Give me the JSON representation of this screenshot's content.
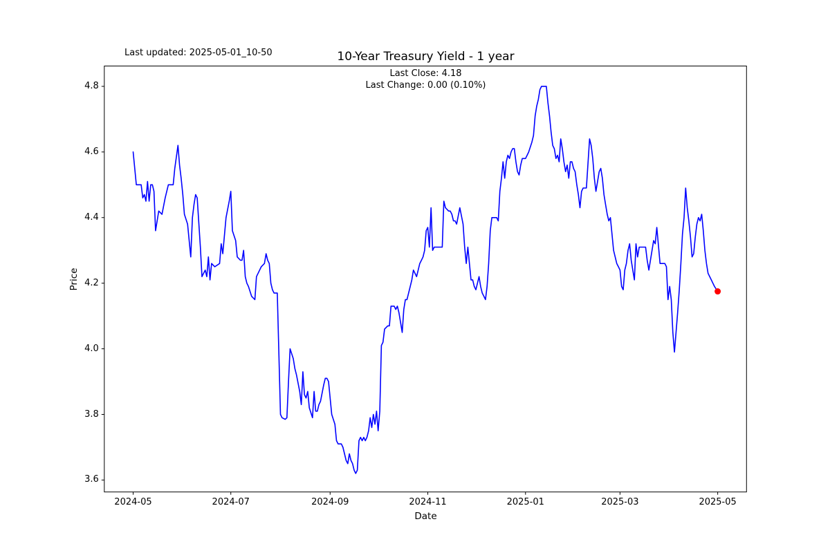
{
  "annotations": {
    "last_updated": "Last updated: 2025-05-01_10-50",
    "title": "10-Year Treasury Yield - 1 year",
    "last_close": "Last Close: 4.18",
    "last_change": "Last Change: 0.00 (0.10%)"
  },
  "chart_data": {
    "type": "line",
    "title": "10-Year Treasury Yield - 1 year",
    "xlabel": "Date",
    "ylabel": "Price",
    "grid": false,
    "legend": "none",
    "line_color": "#0000ff",
    "marker_color": "#ff0000",
    "axis_color": "#000000",
    "x_unit": "trading days offset from 2024-05-01",
    "x_domain_days": [
      -18,
      383
    ],
    "y_domain": [
      3.5636,
      4.862
    ],
    "x_ticks": [
      {
        "day": 0,
        "label": "2024-05"
      },
      {
        "day": 61,
        "label": "2024-07"
      },
      {
        "day": 123,
        "label": "2024-09"
      },
      {
        "day": 184,
        "label": "2024-11"
      },
      {
        "day": 245,
        "label": "2025-01"
      },
      {
        "day": 304,
        "label": "2025-03"
      },
      {
        "day": 365,
        "label": "2025-05"
      }
    ],
    "y_ticks": [
      {
        "v": 3.6,
        "label": "3.6"
      },
      {
        "v": 3.8,
        "label": "3.8"
      },
      {
        "v": 4.0,
        "label": "4.0"
      },
      {
        "v": 4.2,
        "label": "4.2"
      },
      {
        "v": 4.4,
        "label": "4.4"
      },
      {
        "v": 4.6,
        "label": "4.6"
      },
      {
        "v": 4.8,
        "label": "4.8"
      }
    ],
    "last_point": {
      "day": 365,
      "value": 4.175,
      "date": "2025-05-01"
    },
    "last_close_value": 4.18,
    "last_change_value": 0.0,
    "last_change_pct": "0.10%",
    "points": [
      [
        0,
        4.6
      ],
      [
        2,
        4.5
      ],
      [
        5,
        4.5
      ],
      [
        6,
        4.46
      ],
      [
        7,
        4.47
      ],
      [
        8,
        4.45
      ],
      [
        9,
        4.51
      ],
      [
        10,
        4.45
      ],
      [
        11,
        4.5
      ],
      [
        12,
        4.5
      ],
      [
        13,
        4.48
      ],
      [
        14,
        4.36
      ],
      [
        16,
        4.42
      ],
      [
        18,
        4.41
      ],
      [
        20,
        4.46
      ],
      [
        22,
        4.5
      ],
      [
        23,
        4.5
      ],
      [
        25,
        4.5
      ],
      [
        26,
        4.55
      ],
      [
        28,
        4.62
      ],
      [
        29,
        4.56
      ],
      [
        30,
        4.52
      ],
      [
        31,
        4.47
      ],
      [
        32,
        4.41
      ],
      [
        34,
        4.38
      ],
      [
        36,
        4.28
      ],
      [
        37,
        4.4
      ],
      [
        38,
        4.44
      ],
      [
        39,
        4.47
      ],
      [
        40,
        4.46
      ],
      [
        42,
        4.31
      ],
      [
        43,
        4.22
      ],
      [
        45,
        4.24
      ],
      [
        46,
        4.22
      ],
      [
        47,
        4.28
      ],
      [
        48,
        4.21
      ],
      [
        49,
        4.26
      ],
      [
        51,
        4.25
      ],
      [
        54,
        4.26
      ],
      [
        55,
        4.32
      ],
      [
        56,
        4.29
      ],
      [
        58,
        4.4
      ],
      [
        60,
        4.45
      ],
      [
        61,
        4.48
      ],
      [
        62,
        4.36
      ],
      [
        64,
        4.33
      ],
      [
        65,
        4.28
      ],
      [
        67,
        4.27
      ],
      [
        68,
        4.27
      ],
      [
        69,
        4.3
      ],
      [
        70,
        4.22
      ],
      [
        71,
        4.2
      ],
      [
        72,
        4.19
      ],
      [
        74,
        4.16
      ],
      [
        76,
        4.15
      ],
      [
        77,
        4.22
      ],
      [
        79,
        4.24
      ],
      [
        80,
        4.25
      ],
      [
        82,
        4.26
      ],
      [
        83,
        4.29
      ],
      [
        84,
        4.27
      ],
      [
        85,
        4.26
      ],
      [
        86,
        4.2
      ],
      [
        87,
        4.18
      ],
      [
        88,
        4.17
      ],
      [
        90,
        4.17
      ],
      [
        92,
        3.8
      ],
      [
        93,
        3.79
      ],
      [
        95,
        3.785
      ],
      [
        96,
        3.79
      ],
      [
        97,
        3.9
      ],
      [
        98,
        4.0
      ],
      [
        100,
        3.97
      ],
      [
        101,
        3.94
      ],
      [
        102,
        3.92
      ],
      [
        104,
        3.87
      ],
      [
        105,
        3.83
      ],
      [
        106,
        3.93
      ],
      [
        107,
        3.86
      ],
      [
        108,
        3.85
      ],
      [
        109,
        3.87
      ],
      [
        110,
        3.82
      ],
      [
        112,
        3.79
      ],
      [
        113,
        3.87
      ],
      [
        114,
        3.81
      ],
      [
        115,
        3.81
      ],
      [
        116,
        3.83
      ],
      [
        117,
        3.84
      ],
      [
        119,
        3.89
      ],
      [
        120,
        3.91
      ],
      [
        121,
        3.91
      ],
      [
        122,
        3.9
      ],
      [
        123,
        3.85
      ],
      [
        124,
        3.8
      ],
      [
        126,
        3.77
      ],
      [
        127,
        3.72
      ],
      [
        128,
        3.71
      ],
      [
        130,
        3.71
      ],
      [
        131,
        3.7
      ],
      [
        132,
        3.68
      ],
      [
        133,
        3.66
      ],
      [
        134,
        3.65
      ],
      [
        135,
        3.68
      ],
      [
        136,
        3.66
      ],
      [
        137,
        3.65
      ],
      [
        138,
        3.63
      ],
      [
        139,
        3.62
      ],
      [
        140,
        3.63
      ],
      [
        141,
        3.72
      ],
      [
        142,
        3.73
      ],
      [
        143,
        3.72
      ],
      [
        144,
        3.73
      ],
      [
        145,
        3.72
      ],
      [
        146,
        3.73
      ],
      [
        147,
        3.75
      ],
      [
        148,
        3.79
      ],
      [
        149,
        3.76
      ],
      [
        150,
        3.8
      ],
      [
        151,
        3.77
      ],
      [
        152,
        3.81
      ],
      [
        153,
        3.75
      ],
      [
        154,
        3.81
      ],
      [
        155,
        4.01
      ],
      [
        156,
        4.02
      ],
      [
        157,
        4.06
      ],
      [
        159,
        4.07
      ],
      [
        160,
        4.07
      ],
      [
        161,
        4.13
      ],
      [
        163,
        4.13
      ],
      [
        164,
        4.12
      ],
      [
        165,
        4.13
      ],
      [
        166,
        4.11
      ],
      [
        168,
        4.05
      ],
      [
        169,
        4.12
      ],
      [
        170,
        4.15
      ],
      [
        171,
        4.15
      ],
      [
        173,
        4.19
      ],
      [
        174,
        4.21
      ],
      [
        175,
        4.24
      ],
      [
        176,
        4.23
      ],
      [
        177,
        4.22
      ],
      [
        179,
        4.26
      ],
      [
        180,
        4.27
      ],
      [
        181,
        4.28
      ],
      [
        182,
        4.3
      ],
      [
        183,
        4.36
      ],
      [
        184,
        4.37
      ],
      [
        185,
        4.31
      ],
      [
        186,
        4.43
      ],
      [
        187,
        4.3
      ],
      [
        188,
        4.31
      ],
      [
        191,
        4.31
      ],
      [
        193,
        4.31
      ],
      [
        194,
        4.45
      ],
      [
        195,
        4.43
      ],
      [
        197,
        4.42
      ],
      [
        198,
        4.42
      ],
      [
        199,
        4.41
      ],
      [
        200,
        4.39
      ],
      [
        201,
        4.39
      ],
      [
        202,
        4.38
      ],
      [
        204,
        4.43
      ],
      [
        206,
        4.38
      ],
      [
        207,
        4.31
      ],
      [
        208,
        4.26
      ],
      [
        209,
        4.31
      ],
      [
        211,
        4.21
      ],
      [
        212,
        4.21
      ],
      [
        213,
        4.19
      ],
      [
        214,
        4.18
      ],
      [
        216,
        4.22
      ],
      [
        217,
        4.19
      ],
      [
        218,
        4.17
      ],
      [
        219,
        4.16
      ],
      [
        220,
        4.15
      ],
      [
        221,
        4.19
      ],
      [
        222,
        4.26
      ],
      [
        223,
        4.36
      ],
      [
        224,
        4.4
      ],
      [
        226,
        4.4
      ],
      [
        227,
        4.4
      ],
      [
        228,
        4.39
      ],
      [
        229,
        4.48
      ],
      [
        230,
        4.52
      ],
      [
        231,
        4.57
      ],
      [
        232,
        4.52
      ],
      [
        233,
        4.57
      ],
      [
        234,
        4.59
      ],
      [
        235,
        4.58
      ],
      [
        236,
        4.6
      ],
      [
        237,
        4.61
      ],
      [
        238,
        4.61
      ],
      [
        239,
        4.57
      ],
      [
        240,
        4.54
      ],
      [
        241,
        4.53
      ],
      [
        242,
        4.56
      ],
      [
        243,
        4.58
      ],
      [
        245,
        4.58
      ],
      [
        246,
        4.59
      ],
      [
        247,
        4.6
      ],
      [
        249,
        4.63
      ],
      [
        250,
        4.65
      ],
      [
        251,
        4.71
      ],
      [
        252,
        4.74
      ],
      [
        253,
        4.76
      ],
      [
        254,
        4.79
      ],
      [
        255,
        4.8
      ],
      [
        257,
        4.8
      ],
      [
        258,
        4.8
      ],
      [
        259,
        4.75
      ],
      [
        260,
        4.71
      ],
      [
        261,
        4.66
      ],
      [
        262,
        4.62
      ],
      [
        263,
        4.61
      ],
      [
        264,
        4.58
      ],
      [
        265,
        4.59
      ],
      [
        266,
        4.57
      ],
      [
        267,
        4.64
      ],
      [
        268,
        4.61
      ],
      [
        269,
        4.57
      ],
      [
        270,
        4.54
      ],
      [
        271,
        4.56
      ],
      [
        272,
        4.52
      ],
      [
        273,
        4.57
      ],
      [
        274,
        4.57
      ],
      [
        275,
        4.55
      ],
      [
        276,
        4.54
      ],
      [
        277,
        4.5
      ],
      [
        278,
        4.47
      ],
      [
        279,
        4.43
      ],
      [
        280,
        4.48
      ],
      [
        281,
        4.49
      ],
      [
        283,
        4.49
      ],
      [
        285,
        4.64
      ],
      [
        286,
        4.62
      ],
      [
        287,
        4.58
      ],
      [
        288,
        4.52
      ],
      [
        289,
        4.48
      ],
      [
        291,
        4.54
      ],
      [
        292,
        4.55
      ],
      [
        293,
        4.52
      ],
      [
        294,
        4.47
      ],
      [
        295,
        4.44
      ],
      [
        296,
        4.41
      ],
      [
        297,
        4.39
      ],
      [
        298,
        4.4
      ],
      [
        300,
        4.3
      ],
      [
        301,
        4.28
      ],
      [
        302,
        4.26
      ],
      [
        303,
        4.25
      ],
      [
        304,
        4.24
      ],
      [
        305,
        4.19
      ],
      [
        306,
        4.18
      ],
      [
        307,
        4.24
      ],
      [
        308,
        4.26
      ],
      [
        309,
        4.3
      ],
      [
        310,
        4.32
      ],
      [
        311,
        4.27
      ],
      [
        312,
        4.24
      ],
      [
        313,
        4.21
      ],
      [
        314,
        4.32
      ],
      [
        315,
        4.28
      ],
      [
        316,
        4.31
      ],
      [
        318,
        4.31
      ],
      [
        320,
        4.31
      ],
      [
        321,
        4.27
      ],
      [
        322,
        4.24
      ],
      [
        323,
        4.27
      ],
      [
        324,
        4.3
      ],
      [
        325,
        4.33
      ],
      [
        326,
        4.32
      ],
      [
        327,
        4.37
      ],
      [
        329,
        4.26
      ],
      [
        332,
        4.26
      ],
      [
        333,
        4.25
      ],
      [
        334,
        4.15
      ],
      [
        335,
        4.19
      ],
      [
        336,
        4.15
      ],
      [
        337,
        4.05
      ],
      [
        338,
        3.99
      ],
      [
        339,
        4.05
      ],
      [
        340,
        4.11
      ],
      [
        341,
        4.18
      ],
      [
        342,
        4.26
      ],
      [
        343,
        4.35
      ],
      [
        344,
        4.4
      ],
      [
        345,
        4.49
      ],
      [
        346,
        4.43
      ],
      [
        347,
        4.39
      ],
      [
        348,
        4.34
      ],
      [
        349,
        4.28
      ],
      [
        350,
        4.29
      ],
      [
        351,
        4.34
      ],
      [
        352,
        4.38
      ],
      [
        353,
        4.4
      ],
      [
        354,
        4.39
      ],
      [
        355,
        4.41
      ],
      [
        356,
        4.36
      ],
      [
        357,
        4.3
      ],
      [
        358,
        4.26
      ],
      [
        359,
        4.23
      ],
      [
        361,
        4.21
      ],
      [
        362,
        4.2
      ],
      [
        363,
        4.19
      ],
      [
        365,
        4.175
      ]
    ]
  }
}
